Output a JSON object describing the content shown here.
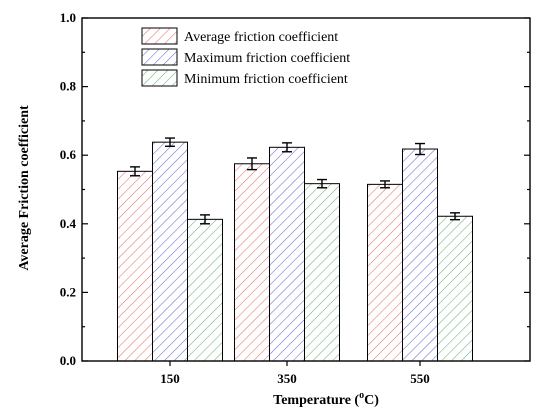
{
  "chart_data": {
    "type": "bar",
    "xlabel": "Temperature (",
    "xlabel_sup": "o",
    "xlabel_unit": "C)",
    "ylabel": "Average Friction coefficient",
    "categories": [
      "150",
      "350",
      "550"
    ],
    "ylim": [
      0.0,
      1.0
    ],
    "yticks": [
      "0.0",
      "0.2",
      "0.4",
      "0.6",
      "0.8",
      "1.0"
    ],
    "legend_position": "top-left",
    "grid": false,
    "series": [
      {
        "name": "Average friction coefficient",
        "color": "#e8716f",
        "values": [
          0.553,
          0.575,
          0.515
        ],
        "errors": [
          0.013,
          0.017,
          0.01
        ]
      },
      {
        "name": "Maximum friction coefficient",
        "color": "#6a6cd8",
        "values": [
          0.638,
          0.623,
          0.618
        ],
        "errors": [
          0.012,
          0.013,
          0.016
        ]
      },
      {
        "name": "Minimum friction coefficient",
        "color": "#6cb37d",
        "values": [
          0.413,
          0.517,
          0.422
        ],
        "errors": [
          0.013,
          0.012,
          0.01
        ]
      }
    ]
  }
}
